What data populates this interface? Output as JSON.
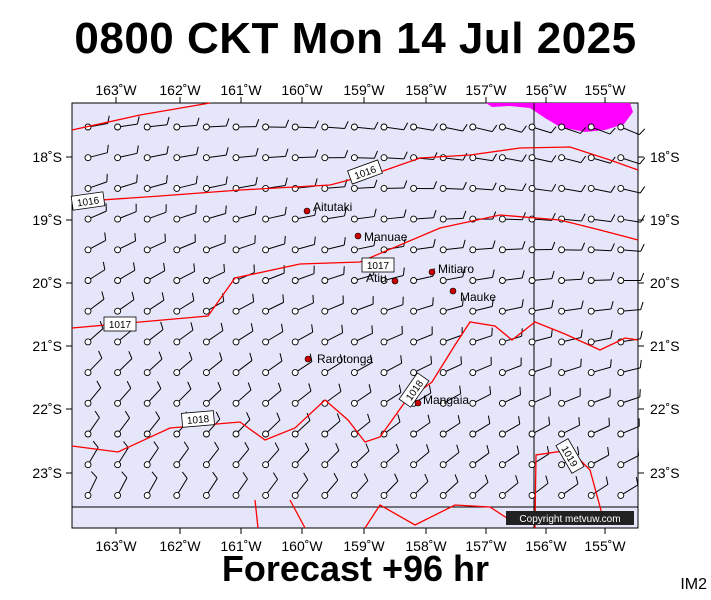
{
  "header": {
    "title": "0800 CKT Mon 14 Jul 2025",
    "forecast": "Forecast +96 hr",
    "image_id": "IM2"
  },
  "map": {
    "lon_labels": [
      "163˚W",
      "162˚W",
      "161˚W",
      "160˚W",
      "159˚W",
      "158˚W",
      "157˚W",
      "156˚W",
      "155˚W"
    ],
    "lat_labels": [
      "18˚S",
      "19˚S",
      "20˚S",
      "21˚S",
      "22˚S",
      "23˚S"
    ],
    "locations": [
      {
        "name": "Aitutaki"
      },
      {
        "name": "Manuae"
      },
      {
        "name": "Mitiaro"
      },
      {
        "name": "Atiu"
      },
      {
        "name": "Mauke"
      },
      {
        "name": "Rarotonga"
      },
      {
        "name": "Mangaia"
      }
    ],
    "isobar_labels": [
      "1016",
      "1016",
      "1017",
      "1017",
      "1018",
      "1018",
      "1019"
    ],
    "credit": "Copyright metvuw.com",
    "colors": {
      "ocean": "#e6e6fa",
      "isobar": "#ff0000",
      "town": "#cc0000",
      "rain": "#ff00ff"
    }
  }
}
